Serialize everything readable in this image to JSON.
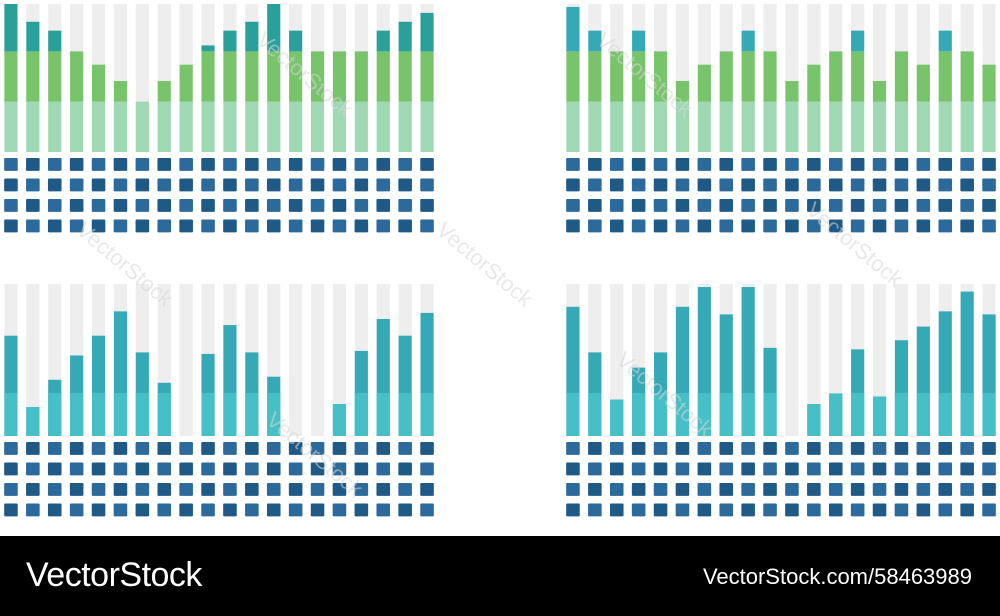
{
  "colors": {
    "track": "#eeeeee",
    "grid_tile": "#2b6a9a",
    "grid_tile_alt": "#1f5a87",
    "teal_dark": "#2aa09a",
    "teal": "#35a9b6",
    "teal_light": "#46c0c6",
    "green": "#78c46b",
    "green_light": "#9ed9b4",
    "overlay": "#ffffff"
  },
  "watermark": {
    "text": "VectorStock"
  },
  "footer": {
    "brand": "VectorStock",
    "image_id": "VectorStock.com/58463989"
  },
  "chart_data": [
    {
      "type": "bar",
      "panel": "top-left",
      "columns": 20,
      "scale": [
        0,
        100
      ],
      "series": [
        {
          "values": [
            34,
            34,
            34,
            34,
            34,
            34,
            34,
            34,
            34,
            34,
            34,
            34,
            34,
            34,
            34,
            34,
            34,
            34,
            34,
            34
          ]
        },
        {
          "values": [
            34,
            34,
            34,
            34,
            25,
            14,
            0,
            14,
            25,
            34,
            34,
            34,
            34,
            34,
            34,
            34,
            34,
            34,
            34,
            34
          ]
        },
        {
          "values": [
            32,
            20,
            14,
            0,
            0,
            0,
            0,
            0,
            0,
            4,
            14,
            20,
            32,
            14,
            0,
            0,
            0,
            14,
            20,
            26
          ]
        }
      ]
    },
    {
      "type": "bar",
      "panel": "top-right",
      "columns": 20,
      "scale": [
        0,
        100
      ],
      "series": [
        {
          "values": [
            34,
            34,
            34,
            34,
            34,
            34,
            34,
            34,
            34,
            34,
            34,
            34,
            34,
            34,
            34,
            34,
            34,
            34,
            34,
            34
          ]
        },
        {
          "values": [
            34,
            34,
            34,
            34,
            34,
            14,
            25,
            34,
            34,
            34,
            14,
            25,
            34,
            34,
            14,
            34,
            25,
            34,
            34,
            25
          ]
        },
        {
          "values": [
            30,
            14,
            0,
            14,
            0,
            0,
            0,
            0,
            14,
            0,
            0,
            0,
            0,
            14,
            0,
            0,
            0,
            14,
            0,
            0
          ]
        }
      ]
    },
    {
      "type": "bar",
      "panel": "bottom-left",
      "columns": 20,
      "scale": [
        0,
        100
      ],
      "series": [
        {
          "values": [
            66,
            19,
            37,
            53,
            66,
            82,
            55,
            35,
            0,
            54,
            73,
            55,
            39,
            0,
            0,
            21,
            56,
            77,
            66,
            81
          ]
        }
      ]
    },
    {
      "type": "bar",
      "panel": "bottom-right",
      "columns": 20,
      "scale": [
        0,
        100
      ],
      "series": [
        {
          "values": [
            85,
            55,
            24,
            45,
            55,
            85,
            98,
            80,
            98,
            58,
            0,
            21,
            28,
            57,
            26,
            63,
            72,
            82,
            95,
            80
          ]
        }
      ]
    }
  ]
}
